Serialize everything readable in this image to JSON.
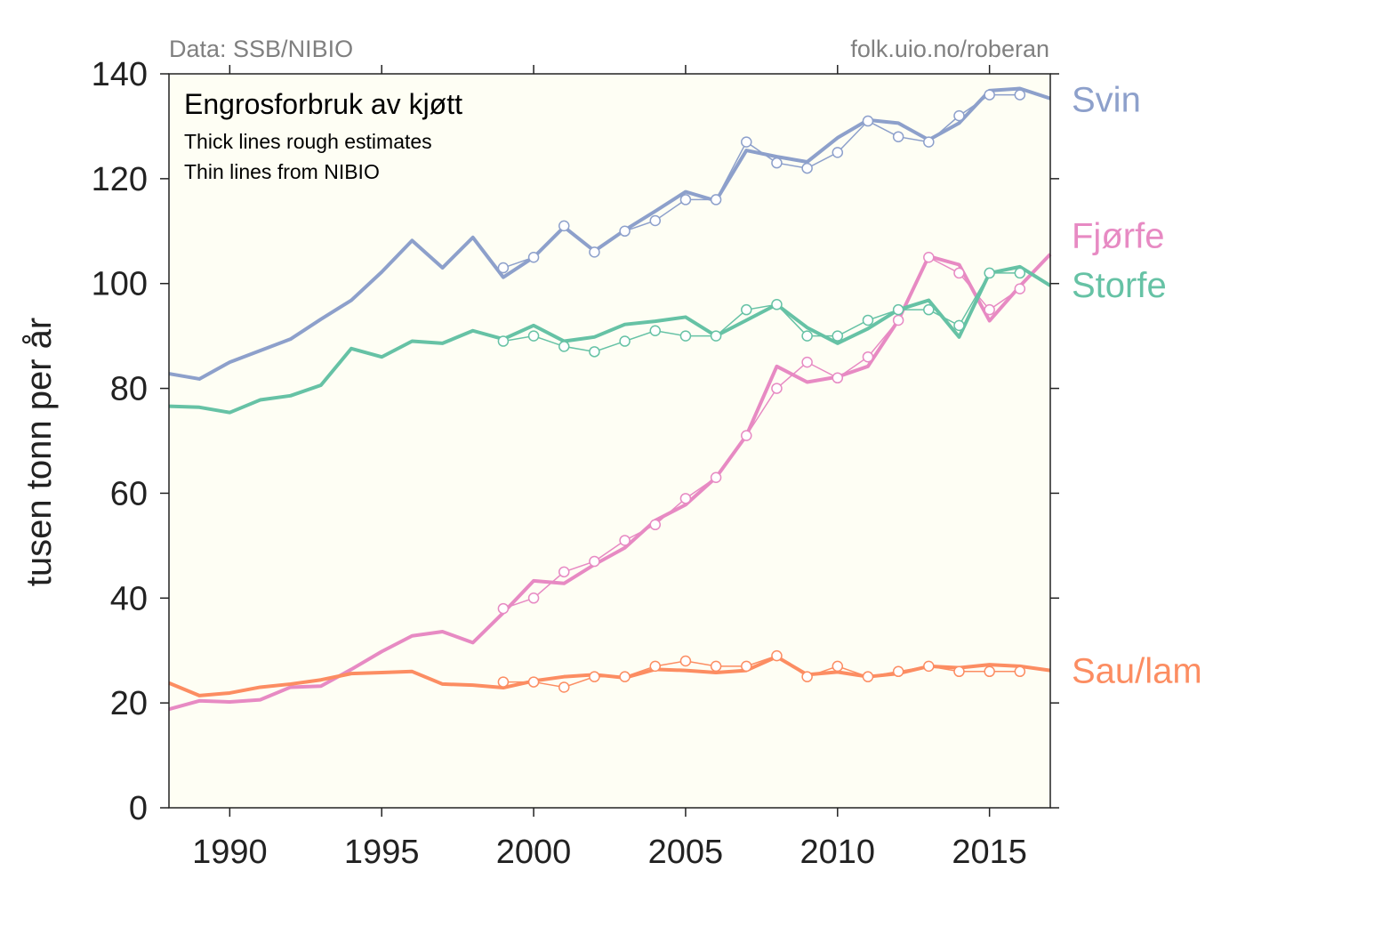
{
  "chart_data": {
    "type": "line",
    "title": "Engrosforbruk av kjøtt",
    "subtitle_lines": [
      "Thick lines rough estimates",
      "Thin lines from NIBIO"
    ],
    "source_left": "Data: SSB/NIBIO",
    "source_right": "folk.uio.no/roberan",
    "ylabel": "tusen tonn per år",
    "xlim": [
      1988,
      2017
    ],
    "ylim": [
      0,
      140
    ],
    "xticks": [
      1990,
      1995,
      2000,
      2005,
      2010,
      2015
    ],
    "yticks": [
      0,
      20,
      40,
      60,
      80,
      100,
      120,
      140
    ],
    "background": "#fefef4",
    "series": [
      {
        "name": "Svin",
        "color": "#8da0cb",
        "thick": [
          [
            1988,
            82.8
          ],
          [
            1989,
            81.8
          ],
          [
            1990,
            85
          ],
          [
            1991,
            87.2
          ],
          [
            1992,
            89.4
          ],
          [
            1993,
            93.2
          ],
          [
            1994,
            96.8
          ],
          [
            1995,
            102.2
          ],
          [
            1996,
            108.2
          ],
          [
            1997,
            103
          ],
          [
            1998,
            108.8
          ],
          [
            1999,
            101.2
          ],
          [
            2000,
            105
          ],
          [
            2001,
            110.8
          ],
          [
            2002,
            106.2
          ],
          [
            2003,
            110.2
          ],
          [
            2004,
            113.8
          ],
          [
            2005,
            117.5
          ],
          [
            2006,
            115.8
          ],
          [
            2007,
            125.4
          ],
          [
            2008,
            124.2
          ],
          [
            2009,
            123.2
          ],
          [
            2010,
            127.8
          ],
          [
            2011,
            131.2
          ],
          [
            2012,
            130.6
          ],
          [
            2013,
            127.4
          ],
          [
            2014,
            130.6
          ],
          [
            2015,
            136.8
          ],
          [
            2016,
            137.2
          ],
          [
            2017,
            135.3
          ]
        ],
        "thin": [
          [
            1999,
            103
          ],
          [
            2000,
            105
          ],
          [
            2001,
            111
          ],
          [
            2002,
            106
          ],
          [
            2003,
            110
          ],
          [
            2004,
            112
          ],
          [
            2005,
            116
          ],
          [
            2006,
            116
          ],
          [
            2007,
            127
          ],
          [
            2008,
            123
          ],
          [
            2009,
            122
          ],
          [
            2010,
            125
          ],
          [
            2011,
            131
          ],
          [
            2012,
            128
          ],
          [
            2013,
            127
          ],
          [
            2014,
            132
          ],
          [
            2015,
            136
          ],
          [
            2016,
            136
          ]
        ]
      },
      {
        "name": "Fjørfe",
        "color": "#e78ac3",
        "thick": [
          [
            1988,
            18.8
          ],
          [
            1989,
            20.4
          ],
          [
            1990,
            20.2
          ],
          [
            1991,
            20.6
          ],
          [
            1992,
            23
          ],
          [
            1993,
            23.2
          ],
          [
            1994,
            26.4
          ],
          [
            1995,
            29.8
          ],
          [
            1996,
            32.8
          ],
          [
            1997,
            33.6
          ],
          [
            1998,
            31.5
          ],
          [
            1999,
            37.2
          ],
          [
            2000,
            43.3
          ],
          [
            2001,
            42.8
          ],
          [
            2002,
            46.4
          ],
          [
            2003,
            49.6
          ],
          [
            2004,
            54.8
          ],
          [
            2005,
            57.8
          ],
          [
            2006,
            63
          ],
          [
            2007,
            71
          ],
          [
            2008,
            84.2
          ],
          [
            2009,
            81.2
          ],
          [
            2010,
            82.2
          ],
          [
            2011,
            84.2
          ],
          [
            2012,
            93
          ],
          [
            2013,
            105.2
          ],
          [
            2014,
            103.6
          ],
          [
            2015,
            92.9
          ],
          [
            2016,
            99.5
          ],
          [
            2017,
            105.6
          ]
        ],
        "thin": [
          [
            1999,
            38
          ],
          [
            2000,
            40
          ],
          [
            2001,
            45
          ],
          [
            2002,
            47
          ],
          [
            2003,
            51
          ],
          [
            2004,
            54
          ],
          [
            2005,
            59
          ],
          [
            2006,
            63
          ],
          [
            2007,
            71
          ],
          [
            2008,
            80
          ],
          [
            2009,
            85
          ],
          [
            2010,
            82
          ],
          [
            2011,
            86
          ],
          [
            2012,
            93
          ],
          [
            2013,
            105
          ],
          [
            2014,
            102
          ],
          [
            2015,
            95
          ],
          [
            2016,
            99
          ]
        ]
      },
      {
        "name": "Storfe",
        "color": "#66c2a5",
        "thick": [
          [
            1988,
            76.6
          ],
          [
            1989,
            76.4
          ],
          [
            1990,
            75.4
          ],
          [
            1991,
            77.8
          ],
          [
            1992,
            78.6
          ],
          [
            1993,
            80.6
          ],
          [
            1994,
            87.6
          ],
          [
            1995,
            86
          ],
          [
            1996,
            89
          ],
          [
            1997,
            88.6
          ],
          [
            1998,
            91
          ],
          [
            1999,
            89.4
          ],
          [
            2000,
            92
          ],
          [
            2001,
            89
          ],
          [
            2002,
            89.8
          ],
          [
            2003,
            92.2
          ],
          [
            2004,
            92.8
          ],
          [
            2005,
            93.6
          ],
          [
            2006,
            90
          ],
          [
            2007,
            93
          ],
          [
            2008,
            96
          ],
          [
            2009,
            91.6
          ],
          [
            2010,
            88.6
          ],
          [
            2011,
            91.4
          ],
          [
            2012,
            95
          ],
          [
            2013,
            96.8
          ],
          [
            2014,
            89.8
          ],
          [
            2015,
            102
          ],
          [
            2016,
            103.2
          ],
          [
            2017,
            99.6
          ]
        ],
        "thin": [
          [
            1999,
            89
          ],
          [
            2000,
            90
          ],
          [
            2001,
            88
          ],
          [
            2002,
            87
          ],
          [
            2003,
            89
          ],
          [
            2004,
            91
          ],
          [
            2005,
            90
          ],
          [
            2006,
            90
          ],
          [
            2007,
            95
          ],
          [
            2008,
            96
          ],
          [
            2009,
            90
          ],
          [
            2010,
            90
          ],
          [
            2011,
            93
          ],
          [
            2012,
            95
          ],
          [
            2013,
            95
          ],
          [
            2014,
            92
          ],
          [
            2015,
            102
          ],
          [
            2016,
            102
          ]
        ]
      },
      {
        "name": "Sau/lam",
        "color": "#fc8d62",
        "thick": [
          [
            1988,
            23.8
          ],
          [
            1989,
            21.4
          ],
          [
            1990,
            21.9
          ],
          [
            1991,
            23
          ],
          [
            1992,
            23.6
          ],
          [
            1993,
            24.4
          ],
          [
            1994,
            25.6
          ],
          [
            1995,
            25.8
          ],
          [
            1996,
            26
          ],
          [
            1997,
            23.6
          ],
          [
            1998,
            23.4
          ],
          [
            1999,
            22.9
          ],
          [
            2000,
            24.2
          ],
          [
            2001,
            25
          ],
          [
            2002,
            25.4
          ],
          [
            2003,
            24.8
          ],
          [
            2004,
            26.4
          ],
          [
            2005,
            26.2
          ],
          [
            2006,
            25.8
          ],
          [
            2007,
            26.2
          ],
          [
            2008,
            28.8
          ],
          [
            2009,
            25.4
          ],
          [
            2010,
            25.9
          ],
          [
            2011,
            25
          ],
          [
            2012,
            25.6
          ],
          [
            2013,
            27
          ],
          [
            2014,
            26.7
          ],
          [
            2015,
            27.3
          ],
          [
            2016,
            27
          ],
          [
            2017,
            26.2
          ]
        ],
        "thin": [
          [
            1999,
            24
          ],
          [
            2000,
            24
          ],
          [
            2001,
            23
          ],
          [
            2002,
            25
          ],
          [
            2003,
            25
          ],
          [
            2004,
            27
          ],
          [
            2005,
            28
          ],
          [
            2006,
            27
          ],
          [
            2007,
            27
          ],
          [
            2008,
            29
          ],
          [
            2009,
            25
          ],
          [
            2010,
            27
          ],
          [
            2011,
            25
          ],
          [
            2012,
            26
          ],
          [
            2013,
            27
          ],
          [
            2014,
            26
          ],
          [
            2015,
            26
          ],
          [
            2016,
            26
          ]
        ]
      }
    ]
  }
}
